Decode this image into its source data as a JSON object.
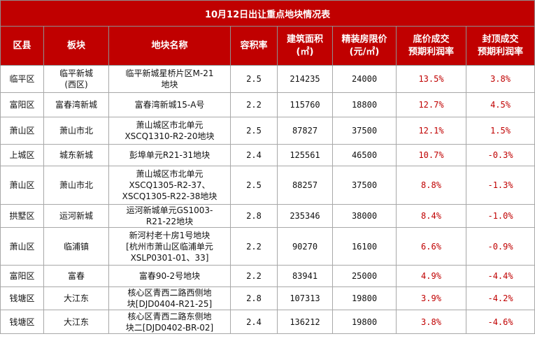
{
  "title": "10月12日出让重点地块情况表",
  "headers": {
    "district": "区县",
    "sector": "板块",
    "plot_name": "地块名称",
    "far": "容积率",
    "area_line1": "建筑面积",
    "area_line2": "(㎡)",
    "price_line1": "精装房限价",
    "price_line2": "(元/㎡)",
    "floor_profit_line1": "底价成交",
    "floor_profit_line2": "预期利润率",
    "cap_profit_line1": "封顶成交",
    "cap_profit_line2": "预期利润率"
  },
  "rows": [
    {
      "district": "临平区",
      "sector": [
        "临平新城",
        "(西区)"
      ],
      "name": [
        "临平新城星桥片区M-21",
        "地块"
      ],
      "far": "2.5",
      "area": "214235",
      "price": "24000",
      "floor_profit": "13.5%",
      "cap_profit": "3.8%"
    },
    {
      "district": "富阳区",
      "sector": [
        "富春湾新城"
      ],
      "name": [
        "富春湾新城15-A号"
      ],
      "far": "2.2",
      "area": "115760",
      "price": "18800",
      "floor_profit": "12.7%",
      "cap_profit": "4.5%"
    },
    {
      "district": "萧山区",
      "sector": [
        "萧山市北"
      ],
      "name": [
        "萧山城区市北单元",
        "XSCQ1310-R2-20地块"
      ],
      "far": "2.5",
      "area": "87827",
      "price": "37500",
      "floor_profit": "12.1%",
      "cap_profit": "1.5%"
    },
    {
      "district": "上城区",
      "sector": [
        "城东新城"
      ],
      "name": [
        "彭埠单元R21-31地块"
      ],
      "far": "2.4",
      "area": "125561",
      "price": "46500",
      "floor_profit": "10.7%",
      "cap_profit": "-0.3%"
    },
    {
      "district": "萧山区",
      "sector": [
        "萧山市北"
      ],
      "name": [
        "萧山城区市北单元",
        "XSCQ1305-R2-37、",
        "XSCQ1305-R22-38地块"
      ],
      "far": "2.5",
      "area": "88257",
      "price": "37500",
      "floor_profit": "8.8%",
      "cap_profit": "-1.3%"
    },
    {
      "district": "拱墅区",
      "sector": [
        "运河新城"
      ],
      "name": [
        "运河新城单元GS1003-",
        "R21-22地块"
      ],
      "far": "2.8",
      "area": "235346",
      "price": "38000",
      "floor_profit": "8.4%",
      "cap_profit": "-1.0%"
    },
    {
      "district": "萧山区",
      "sector": [
        "临浦镇"
      ],
      "name": [
        "新河村老十房1号地块",
        "[杭州市萧山区临浦单元",
        "XSLP0301-01、33]"
      ],
      "far": "2.2",
      "area": "90270",
      "price": "16100",
      "floor_profit": "6.6%",
      "cap_profit": "-0.9%"
    },
    {
      "district": "富阳区",
      "sector": [
        "富春"
      ],
      "name": [
        "富春90-2号地块"
      ],
      "far": "2.2",
      "area": "83941",
      "price": "25000",
      "floor_profit": "4.9%",
      "cap_profit": "-4.4%"
    },
    {
      "district": "钱塘区",
      "sector": [
        "大江东"
      ],
      "name": [
        "核心区青西二路西侧地",
        "块[DJD0404-R21-25]"
      ],
      "far": "2.8",
      "area": "107313",
      "price": "19800",
      "floor_profit": "3.9%",
      "cap_profit": "-4.2%"
    },
    {
      "district": "钱塘区",
      "sector": [
        "大江东"
      ],
      "name": [
        "核心区青西二路东侧地",
        "块二[DJD0402-BR-02]"
      ],
      "far": "2.4",
      "area": "136212",
      "price": "19800",
      "floor_profit": "3.8%",
      "cap_profit": "-4.6%"
    }
  ],
  "colors": {
    "header_bg": "#c00000",
    "header_text": "#ffffff",
    "profit_text": "#c00000"
  }
}
